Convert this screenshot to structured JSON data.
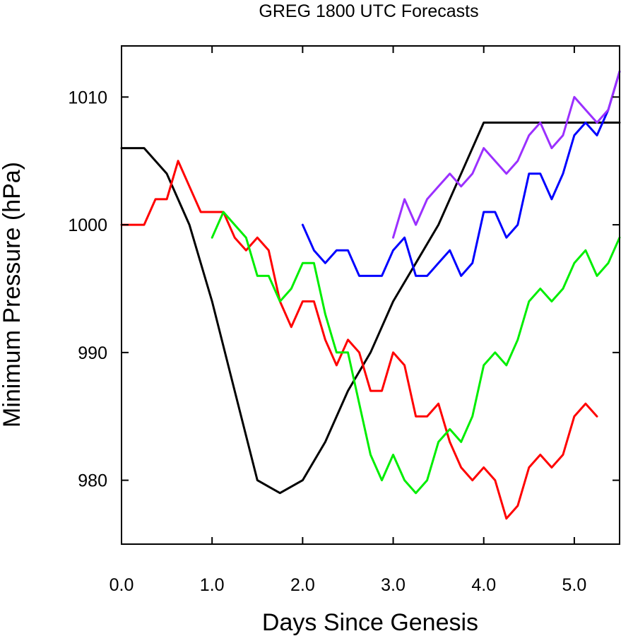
{
  "chart_data": {
    "type": "line",
    "title": "GREG 1800 UTC Forecasts",
    "xlabel": "Days Since Genesis",
    "ylabel": "Minimum Pressure (hPa)",
    "xlim": [
      0,
      5.5
    ],
    "ylim": [
      975,
      1014
    ],
    "x_ticks": [
      0,
      1,
      2,
      3,
      4,
      5
    ],
    "x_tick_labels": [
      "0.0",
      "1.0",
      "2.0",
      "3.0",
      "4.0",
      "5.0"
    ],
    "y_ticks": [
      980,
      990,
      1000,
      1010
    ],
    "y_tick_labels": [
      "980",
      "990",
      "1000",
      "1010"
    ],
    "grid": false,
    "series": [
      {
        "color": "#000000",
        "x": [
          0,
          0.25,
          0.5,
          0.75,
          1.0,
          1.25,
          1.5,
          1.75,
          2.0,
          2.25,
          2.5,
          2.75,
          3.0,
          3.25,
          3.5,
          3.75,
          4.0,
          5.5
        ],
        "values": [
          1006,
          1006,
          1004,
          1000,
          994,
          987,
          980,
          979,
          980,
          983,
          987,
          990,
          994,
          997,
          1000,
          1004,
          1008,
          1008
        ]
      },
      {
        "color": "#ff0000",
        "x": [
          0,
          0.25,
          0.375,
          0.5,
          0.625,
          0.75,
          0.875,
          1.0,
          1.125,
          1.25,
          1.375,
          1.5,
          1.625,
          1.75,
          1.875,
          2.0,
          2.125,
          2.25,
          2.375,
          2.5,
          2.625,
          2.75,
          2.875,
          3.0,
          3.125,
          3.25,
          3.375,
          3.5,
          3.625,
          3.75,
          3.875,
          4.0,
          4.125,
          4.25,
          4.375,
          4.5,
          4.625,
          4.75,
          4.875,
          5.0,
          5.125,
          5.25
        ],
        "values": [
          1000,
          1000,
          1002,
          1002,
          1005,
          1003,
          1001,
          1001,
          1001,
          999,
          998,
          999,
          998,
          994,
          992,
          994,
          994,
          991,
          989,
          991,
          990,
          987,
          987,
          990,
          989,
          985,
          985,
          986,
          983,
          981,
          980,
          981,
          980,
          977,
          978,
          981,
          982,
          981,
          982,
          985,
          986,
          985
        ]
      },
      {
        "color": "#00ee00",
        "x": [
          1.0,
          1.125,
          1.25,
          1.375,
          1.5,
          1.625,
          1.75,
          1.875,
          2.0,
          2.125,
          2.25,
          2.375,
          2.5,
          2.625,
          2.75,
          2.875,
          3.0,
          3.125,
          3.25,
          3.375,
          3.5,
          3.625,
          3.75,
          3.875,
          4.0,
          4.125,
          4.25,
          4.375,
          4.5,
          4.625,
          4.75,
          4.875,
          5.0,
          5.125,
          5.25,
          5.375,
          5.5
        ],
        "values": [
          999,
          1001,
          1000,
          999,
          996,
          996,
          994,
          995,
          997,
          997,
          993,
          990,
          990,
          986,
          982,
          980,
          982,
          980,
          979,
          980,
          983,
          984,
          983,
          985,
          989,
          990,
          989,
          991,
          994,
          995,
          994,
          995,
          997,
          998,
          996,
          997,
          999
        ]
      },
      {
        "color": "#0000ff",
        "x": [
          2.0,
          2.125,
          2.25,
          2.375,
          2.5,
          2.625,
          2.75,
          2.875,
          3.0,
          3.125,
          3.25,
          3.375,
          3.5,
          3.625,
          3.75,
          3.875,
          4.0,
          4.125,
          4.25,
          4.375,
          4.5,
          4.625,
          4.75,
          4.875,
          5.0,
          5.125,
          5.25,
          5.375,
          5.5
        ],
        "values": [
          1000,
          998,
          997,
          998,
          998,
          996,
          996,
          996,
          998,
          999,
          996,
          996,
          997,
          998,
          996,
          997,
          1001,
          1001,
          999,
          1000,
          1004,
          1004,
          1002,
          1004,
          1007,
          1008,
          1007,
          1009,
          1012
        ]
      },
      {
        "color": "#9b30ff",
        "x": [
          3.0,
          3.125,
          3.25,
          3.375,
          3.5,
          3.625,
          3.75,
          3.875,
          4.0,
          4.125,
          4.25,
          4.375,
          4.5,
          4.625,
          4.75,
          4.875,
          5.0,
          5.125,
          5.25,
          5.375,
          5.5
        ],
        "values": [
          999,
          1002,
          1000,
          1002,
          1003,
          1004,
          1003,
          1004,
          1006,
          1005,
          1004,
          1005,
          1007,
          1008,
          1006,
          1007,
          1010,
          1009,
          1008,
          1009,
          1012
        ]
      }
    ]
  }
}
